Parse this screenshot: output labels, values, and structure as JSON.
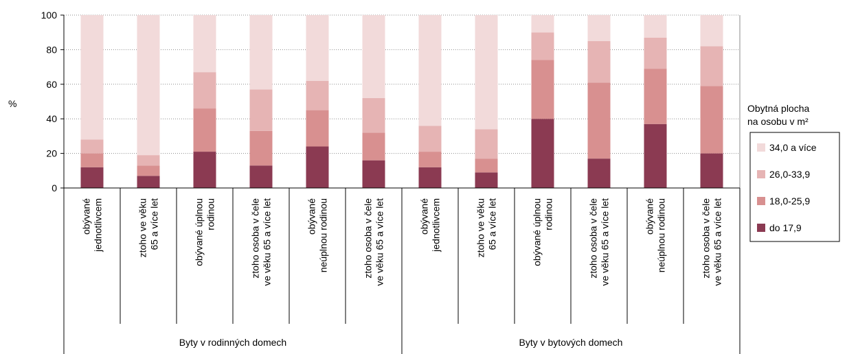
{
  "chart_data": {
    "type": "bar",
    "stacked": true,
    "ylabel": "%",
    "ylim": [
      0,
      100
    ],
    "yticks": [
      0,
      20,
      40,
      60,
      80,
      100
    ],
    "grid": true,
    "legend": {
      "title_lines": [
        "Obytná plocha",
        "na osobu  v m²"
      ],
      "placement": "right"
    },
    "groups": [
      {
        "label": "Byty v rodinných domech",
        "size": 6
      },
      {
        "label": "Byty v bytových domech",
        "size": 6
      }
    ],
    "categories": [
      [
        "obývané",
        "jednotlivcem"
      ],
      [
        "ztoho ve věku",
        "65 a více let"
      ],
      [
        "obývané úplnou",
        "rodinou"
      ],
      [
        "ztoho osoba v čele",
        "ve věku 65 a více let"
      ],
      [
        "obývané",
        "neúplnou rodinou"
      ],
      [
        "ztoho osoba v čele",
        "ve věku 65 a více let"
      ],
      [
        "obývané",
        "jednotlivcem"
      ],
      [
        "ztoho ve věku",
        "65 a více let"
      ],
      [
        "obývané úplnou",
        "rodinou"
      ],
      [
        "ztoho osoba v čele",
        "ve věku 65 a více let"
      ],
      [
        "obývané",
        "neúplnou rodinou"
      ],
      [
        "ztoho osoba v čele",
        "ve věku 65 a více let"
      ]
    ],
    "series": [
      {
        "name": "do 17,9",
        "color": "#8b3a52",
        "values": [
          12,
          7,
          21,
          13,
          24,
          16,
          12,
          9,
          40,
          17,
          37,
          20
        ]
      },
      {
        "name": "18,0-25,9",
        "color": "#d89090",
        "values": [
          8,
          6,
          25,
          20,
          21,
          16,
          9,
          8,
          34,
          44,
          32,
          39
        ]
      },
      {
        "name": "26,0-33,9",
        "color": "#e6b4b4",
        "values": [
          8,
          6,
          21,
          24,
          17,
          20,
          15,
          17,
          16,
          24,
          18,
          23
        ]
      },
      {
        "name": "34,0 a více",
        "color": "#f2dada",
        "values": [
          72,
          81,
          33,
          43,
          38,
          48,
          64,
          66,
          10,
          15,
          13,
          18
        ]
      }
    ]
  }
}
